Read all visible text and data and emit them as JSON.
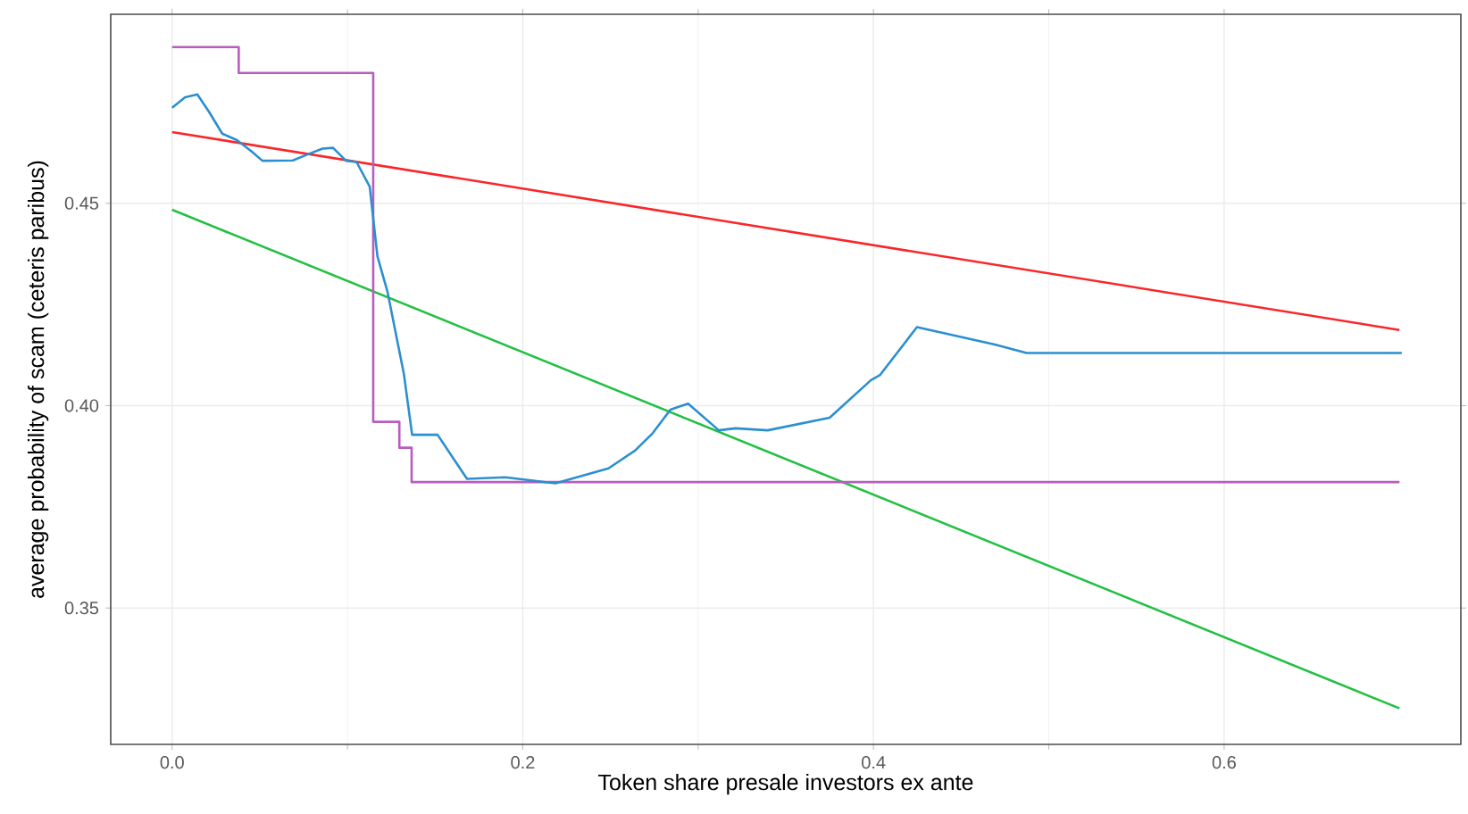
{
  "chart_data": {
    "type": "line",
    "xlabel": "Token share presale investors ex ante",
    "ylabel": "average probability of scam (ceteris paribus)",
    "xlim": [
      -0.035,
      0.735
    ],
    "ylim": [
      0.3163,
      0.4967
    ],
    "xticks": [
      {
        "value": 0,
        "label": "0.0"
      },
      0.2,
      0.4,
      0.6
    ],
    "yticks": [
      0.35,
      {
        "value": 0.4,
        "label": "0.40"
      },
      0.45
    ],
    "grid": true,
    "series": [
      {
        "color": "#f8272a",
        "x": [
          0,
          0.7
        ],
        "values": [
          0.4676,
          0.4187
        ]
      },
      {
        "color": "#23c043",
        "x": [
          0,
          0.7
        ],
        "values": [
          0.4484,
          0.3252
        ]
      },
      {
        "color": "#b85dbd",
        "type": "step",
        "x": [
          0,
          0.038,
          0.1127,
          0.1147,
          0.1244,
          0.1296,
          0.1366,
          0.7
        ],
        "values": [
          0.4886,
          0.4822,
          0.4822,
          0.396,
          0.396,
          0.3896,
          0.3811,
          0.3811
        ]
      },
      {
        "color": "#2b8fcf",
        "x": [
          0,
          0.0074,
          0.0144,
          0.0212,
          0.0286,
          0.037,
          0.0454,
          0.0515,
          0.0689,
          0.0774,
          0.0858,
          0.0918,
          0.0992,
          0.1052,
          0.1127,
          0.1171,
          0.1228,
          0.1322,
          0.1369,
          0.1514,
          0.1682,
          0.19,
          0.2186,
          0.2489,
          0.264,
          0.2741,
          0.2842,
          0.2943,
          0.3118,
          0.3212,
          0.3397,
          0.375,
          0.3986,
          0.4036,
          0.4248,
          0.4692,
          0.4874,
          0.7013
        ],
        "values": [
          0.4736,
          0.4762,
          0.4769,
          0.4725,
          0.4672,
          0.4656,
          0.4628,
          0.4605,
          0.4606,
          0.4621,
          0.4635,
          0.4637,
          0.4605,
          0.4602,
          0.4541,
          0.4369,
          0.4282,
          0.4078,
          0.3928,
          0.3928,
          0.3819,
          0.3823,
          0.3808,
          0.3845,
          0.3889,
          0.3932,
          0.399,
          0.4005,
          0.3939,
          0.3944,
          0.3939,
          0.397,
          0.4063,
          0.4075,
          0.4194,
          0.4151,
          0.413,
          0.413
        ]
      }
    ]
  }
}
